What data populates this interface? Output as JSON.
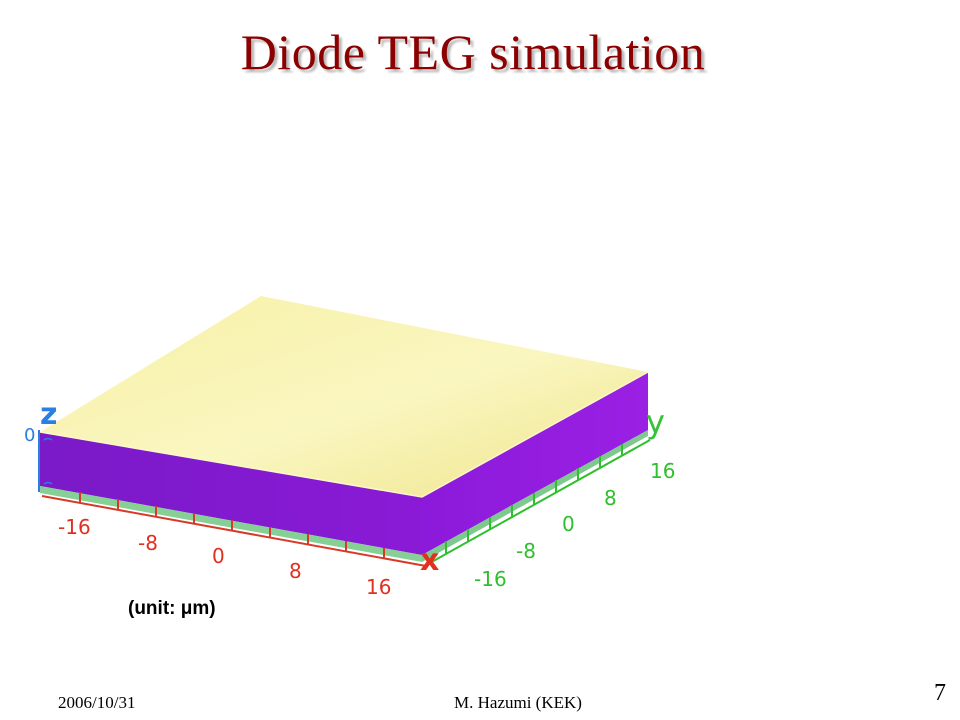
{
  "slide": {
    "title": "Diode TEG simulation",
    "unit_label": "(unit: μm)",
    "footer_date": "2006/10/31",
    "footer_author": "M. Hazumi (KEK)",
    "page_number": "7"
  },
  "figure": {
    "axis_labels": {
      "x": "x",
      "y": "y",
      "z": "z"
    },
    "z_tick": "0",
    "x_ticks": [
      "-16",
      "-8",
      "0",
      "8",
      "16"
    ],
    "y_ticks": [
      "-16",
      "-8",
      "0",
      "8",
      "16"
    ],
    "colors": {
      "top_face": "#f4ee9a",
      "side_face": "#8b16d6",
      "base_green": "#7fc98a",
      "x_axis": "#e03020",
      "y_axis": "#22c022",
      "z_axis": "#1e7ee0",
      "title": "#8b0000"
    }
  }
}
